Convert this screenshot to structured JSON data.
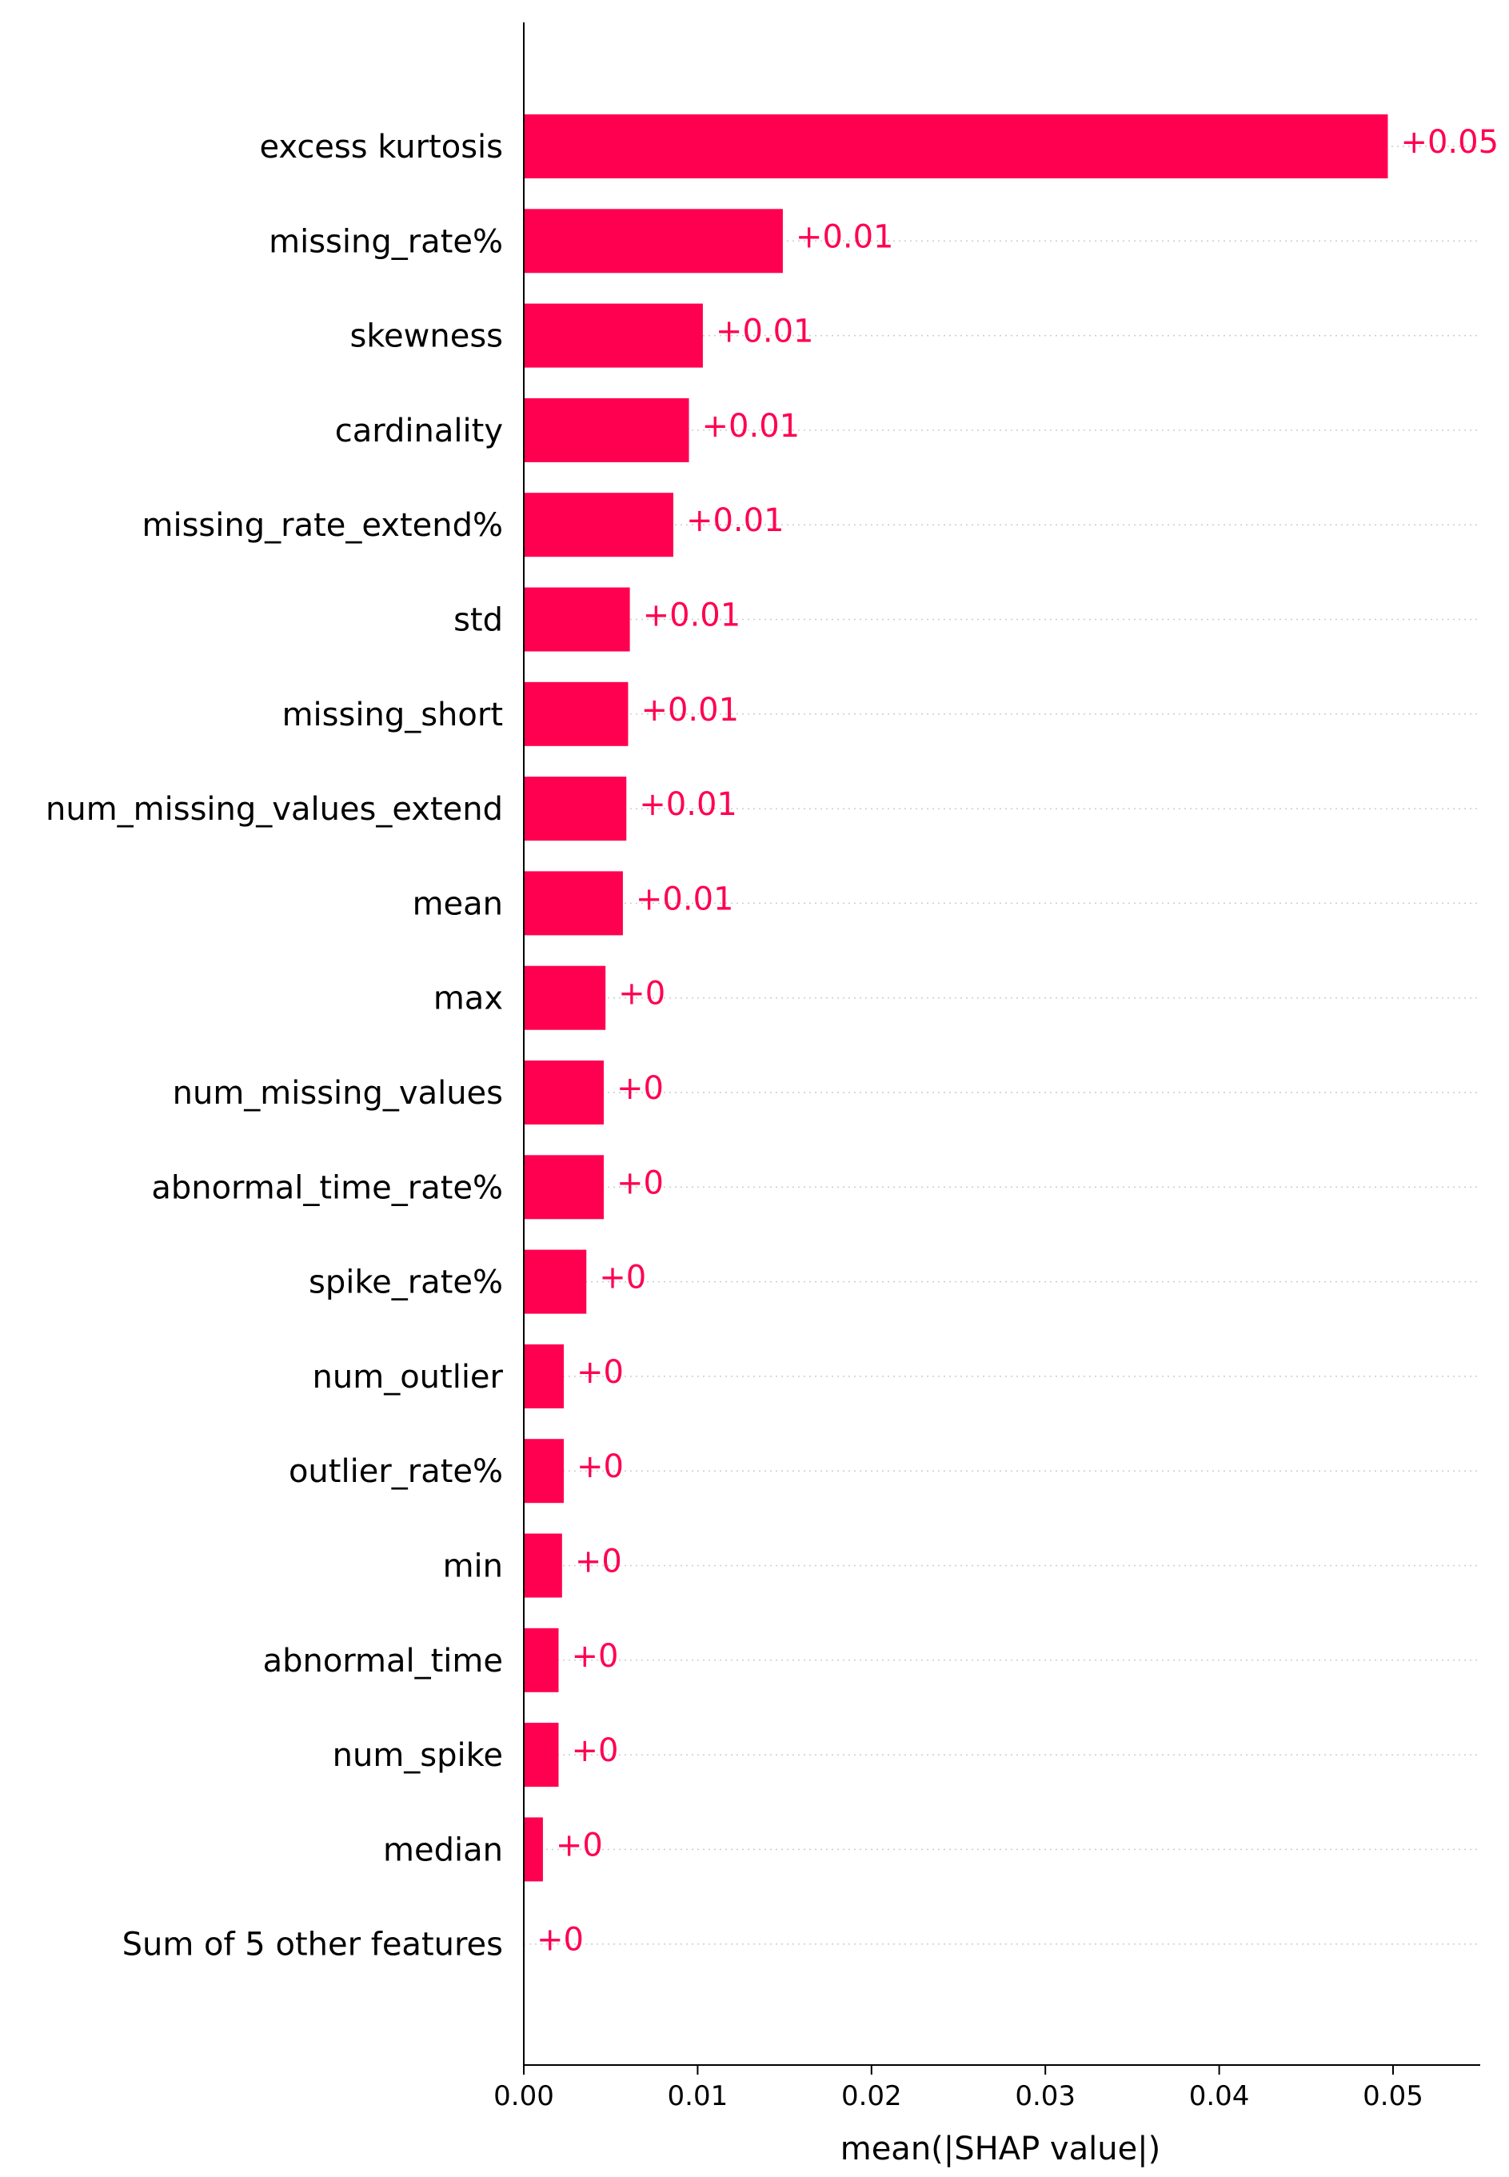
{
  "chart_data": {
    "type": "bar",
    "orientation": "horizontal",
    "xlabel": "mean(|SHAP value|)",
    "xlim": [
      0,
      0.055
    ],
    "xticks": [
      0.0,
      0.01,
      0.02,
      0.03,
      0.04,
      0.05
    ],
    "xtick_labels": [
      "0.00",
      "0.01",
      "0.02",
      "0.03",
      "0.04",
      "0.05"
    ],
    "grid": "horizontal dotted guide lines per row",
    "bar_color": "#ff0051",
    "categories": [
      "excess kurtosis",
      "missing_rate%",
      "skewness",
      "cardinality",
      "missing_rate_extend%",
      "std",
      "missing_short",
      "num_missing_values_extend",
      "mean",
      "max",
      "num_missing_values",
      "abnormal_time_rate%",
      "spike_rate%",
      "num_outlier",
      "outlier_rate%",
      "min",
      "abnormal_time",
      "num_spike",
      "median",
      "Sum of 5 other features"
    ],
    "values": [
      0.0497,
      0.0149,
      0.0103,
      0.0095,
      0.0086,
      0.0061,
      0.006,
      0.0059,
      0.0057,
      0.0047,
      0.0046,
      0.0046,
      0.0036,
      0.0023,
      0.0023,
      0.0022,
      0.002,
      0.002,
      0.0011,
      0.0
    ],
    "value_labels": [
      "+0.05",
      "+0.01",
      "+0.01",
      "+0.01",
      "+0.01",
      "+0.01",
      "+0.01",
      "+0.01",
      "+0.01",
      "+0",
      "+0",
      "+0",
      "+0",
      "+0",
      "+0",
      "+0",
      "+0",
      "+0",
      "+0",
      "+0"
    ]
  }
}
